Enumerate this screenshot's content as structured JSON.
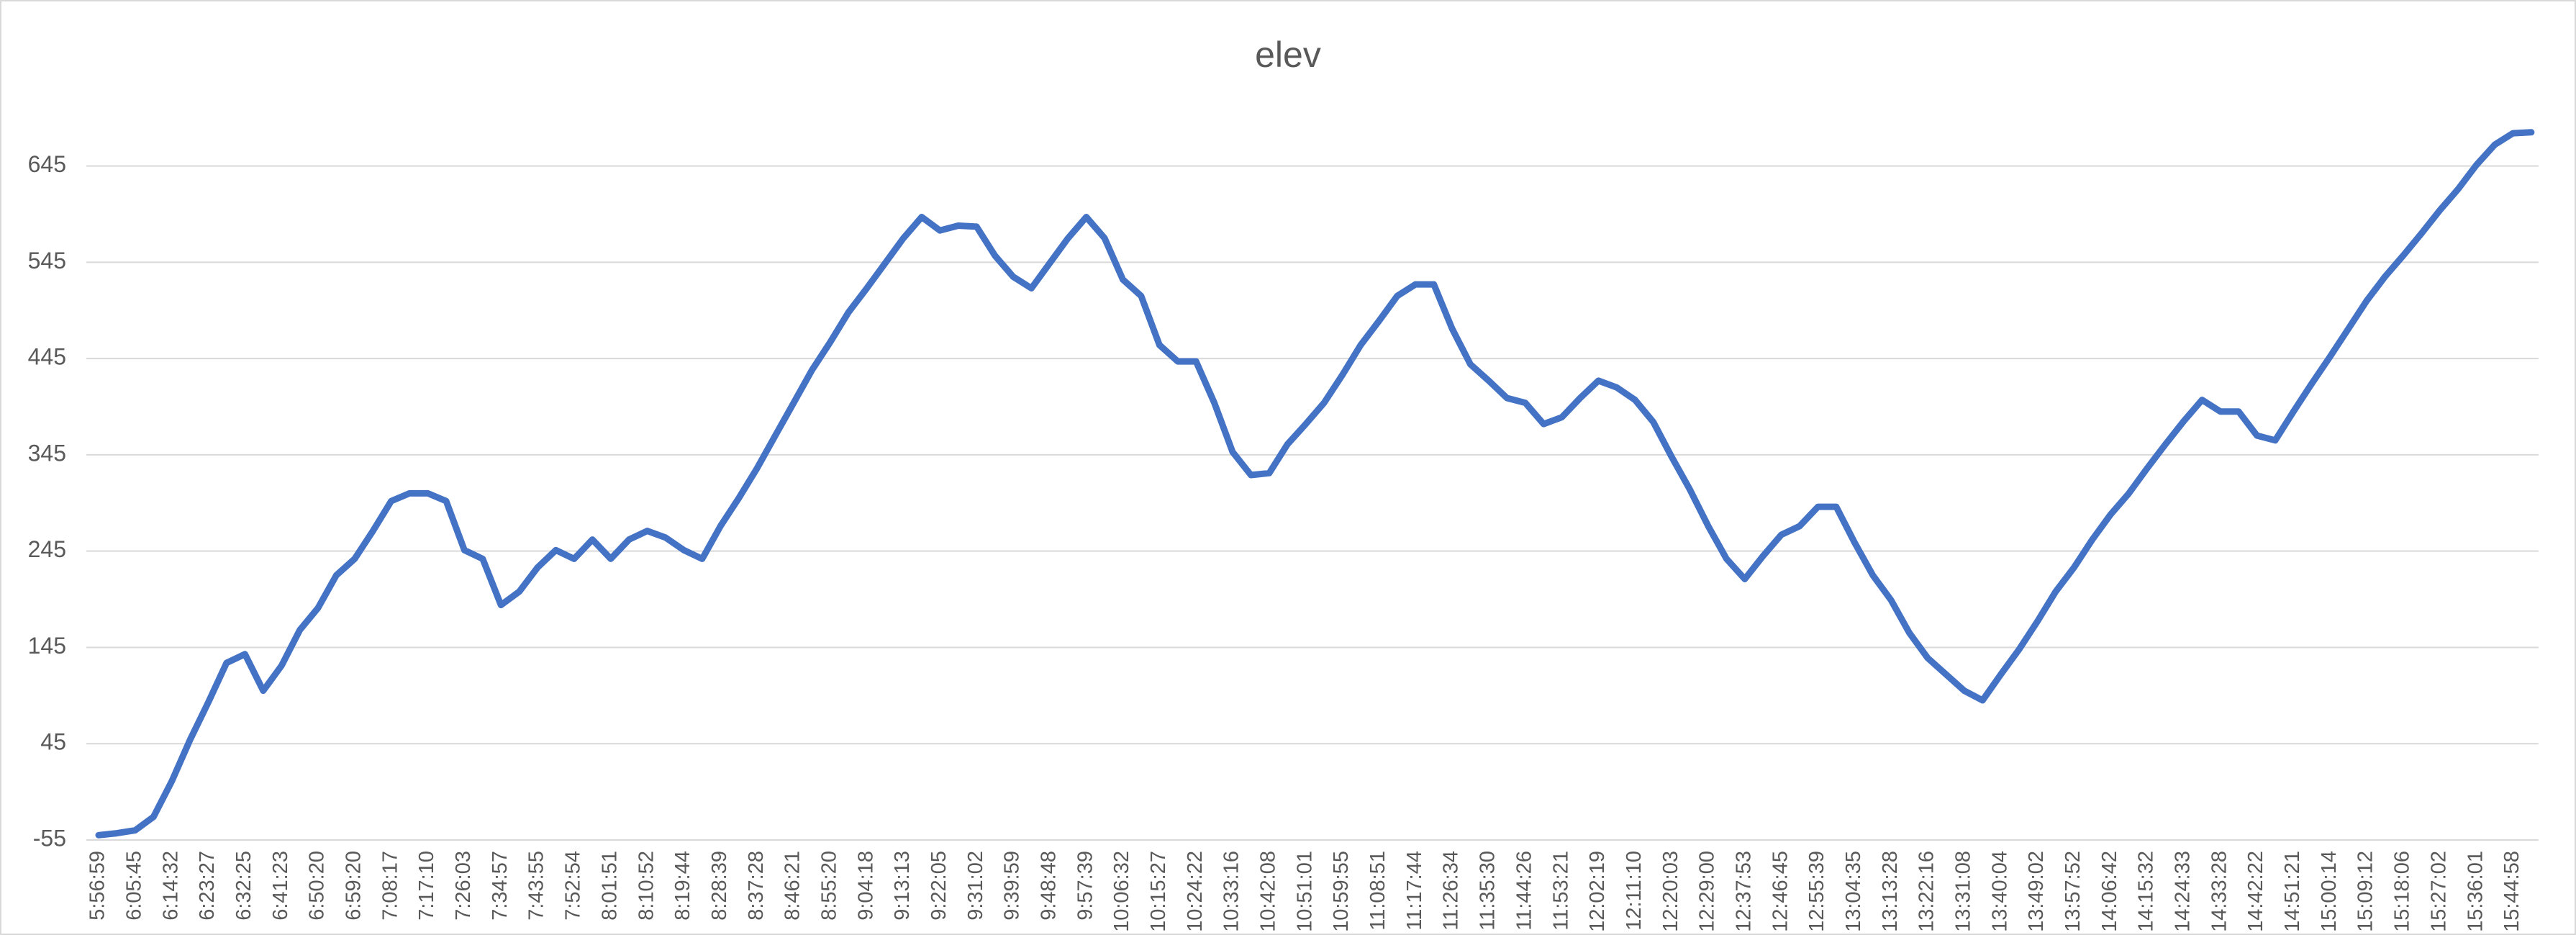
{
  "chart_data": {
    "type": "line",
    "title": "elev",
    "color": "#4472c4",
    "grid": true,
    "ylim": [
      -55,
      700
    ],
    "yticks": [
      -55,
      45,
      145,
      245,
      345,
      445,
      545,
      645
    ],
    "categories": [
      "5:56:59",
      null,
      "6:05:45",
      null,
      "6:14:32",
      null,
      "6:23:27",
      null,
      "6:32:25",
      null,
      "6:41:23",
      null,
      "6:50:20",
      null,
      "6:59:20",
      null,
      "7:08:17",
      null,
      "7:17:10",
      null,
      "7:26:03",
      null,
      "7:34:57",
      null,
      "7:43:55",
      null,
      "7:52:54",
      null,
      "8:01:51",
      null,
      "8:10:52",
      null,
      "8:19:44",
      null,
      "8:28:39",
      null,
      "8:37:28",
      null,
      "8:46:21",
      null,
      "8:55:20",
      null,
      "9:04:18",
      null,
      "9:13:13",
      null,
      "9:22:05",
      null,
      "9:31:02",
      null,
      "9:39:59",
      null,
      "9:48:48",
      null,
      "9:57:39",
      null,
      "10:06:32",
      null,
      "10:15:27",
      null,
      "10:24:22",
      null,
      "10:33:16",
      null,
      "10:42:08",
      null,
      "10:51:01",
      null,
      "10:59:55",
      null,
      "11:08:51",
      null,
      "11:17:44",
      null,
      "11:26:34",
      null,
      "11:35:30",
      null,
      "11:44:26",
      null,
      "11:53:21",
      null,
      "12:02:19",
      null,
      "12:11:10",
      null,
      "12:20:03",
      null,
      "12:29:00",
      null,
      "12:37:53",
      null,
      "12:46:45",
      null,
      "12:55:39",
      null,
      "13:04:35",
      null,
      "13:13:28",
      null,
      "13:22:16",
      null,
      "13:31:08",
      null,
      "13:40:04",
      null,
      "13:49:02",
      null,
      "13:57:52",
      null,
      "14:06:42",
      null,
      "14:15:32",
      null,
      "14:24:33",
      null,
      "14:33:28",
      null,
      "14:42:22",
      null,
      "14:51:21",
      null,
      "15:00:14",
      null,
      "15:09:12",
      null,
      "15:18:06",
      null,
      "15:27:02",
      null,
      "15:36:01",
      null,
      "15:44:58",
      null
    ],
    "values": [
      -50,
      -48,
      -45,
      -31,
      6,
      49,
      88,
      129,
      138,
      100,
      126,
      163,
      186,
      220,
      237,
      266,
      297,
      305,
      305,
      297,
      246,
      237,
      189,
      203,
      228,
      246,
      237,
      257,
      237,
      257,
      266,
      259,
      246,
      237,
      271,
      300,
      331,
      365,
      399,
      433,
      462,
      493,
      518,
      544,
      570,
      592,
      578,
      583,
      582,
      552,
      530,
      518,
      544,
      570,
      592,
      570,
      527,
      510,
      459,
      442,
      442,
      399,
      348,
      324,
      326,
      356,
      377,
      399,
      428,
      459,
      484,
      510,
      522,
      522,
      476,
      439,
      422,
      404,
      399,
      377,
      384,
      404,
      422,
      415,
      402,
      379,
      343,
      309,
      271,
      237,
      216,
      240,
      262,
      271,
      291,
      291,
      254,
      220,
      194,
      160,
      134,
      117,
      100,
      90,
      117,
      143,
      172,
      203,
      228,
      257,
      283,
      305,
      331,
      356,
      380,
      402,
      390,
      390,
      365,
      360,
      390,
      419,
      447,
      476,
      505,
      530,
      552,
      575,
      599,
      621,
      646,
      667,
      679,
      680
    ]
  }
}
